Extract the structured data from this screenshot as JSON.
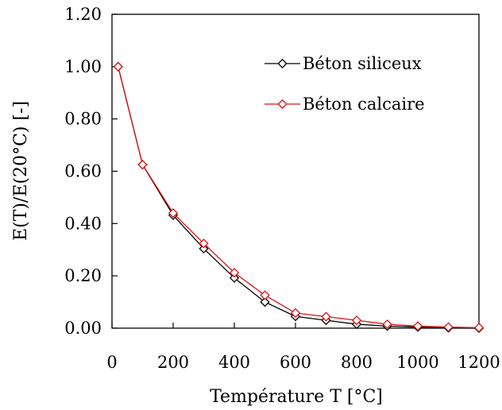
{
  "chart_data": {
    "type": "line",
    "title": "",
    "xlabel": "Température T [°C]",
    "ylabel": "E(T)/E(20°C) [-]",
    "xlim": [
      0,
      1200
    ],
    "ylim": [
      0,
      1.2
    ],
    "xticks": [
      0,
      200,
      400,
      600,
      800,
      1000,
      1200
    ],
    "xtick_labels": [
      "0",
      "200",
      "400",
      "600",
      "800",
      "1000",
      "1200"
    ],
    "yticks": [
      0,
      0.2,
      0.4,
      0.6,
      0.8,
      1.0,
      1.2
    ],
    "ytick_labels": [
      "0.00",
      "0.20",
      "0.40",
      "0.60",
      "0.80",
      "1.00",
      "1.20"
    ],
    "grid": false,
    "legend_position": "top-right",
    "marker": "diamond-open",
    "series": [
      {
        "name": "Béton siliceux",
        "color": "#000000",
        "x": [
          20,
          100,
          200,
          300,
          400,
          500,
          600,
          700,
          800,
          900,
          1000,
          1100,
          1200
        ],
        "y": [
          1.0,
          0.625,
          0.432,
          0.304,
          0.192,
          0.1,
          0.045,
          0.03,
          0.015,
          0.008,
          0.004,
          0.001,
          0.0
        ]
      },
      {
        "name": "Béton calcaire",
        "color": "#e01010",
        "x": [
          20,
          100,
          200,
          300,
          400,
          500,
          600,
          700,
          800,
          900,
          1000,
          1100,
          1200
        ],
        "y": [
          1.0,
          0.625,
          0.44,
          0.324,
          0.212,
          0.126,
          0.058,
          0.044,
          0.03,
          0.015,
          0.008,
          0.004,
          0.002
        ]
      }
    ]
  }
}
